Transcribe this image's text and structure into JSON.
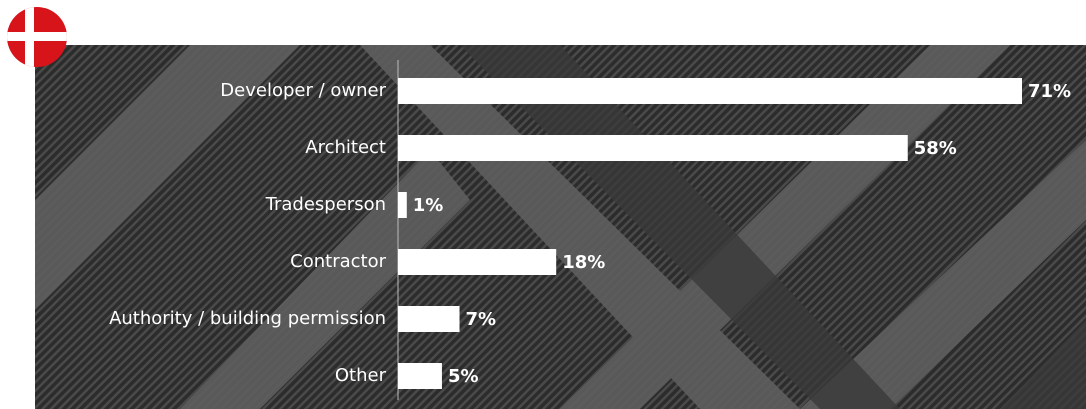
{
  "chart_data": {
    "type": "bar",
    "orientation": "horizontal",
    "categories": [
      "Developer / owner",
      "Architect",
      "Tradesperson",
      "Contractor",
      "Authority / building permission",
      "Other"
    ],
    "values": [
      71,
      58,
      1,
      18,
      7,
      5
    ],
    "value_labels": [
      "71%",
      "58%",
      "1%",
      "18%",
      "7%",
      "5%"
    ],
    "color": "#ffffff"
  }
}
